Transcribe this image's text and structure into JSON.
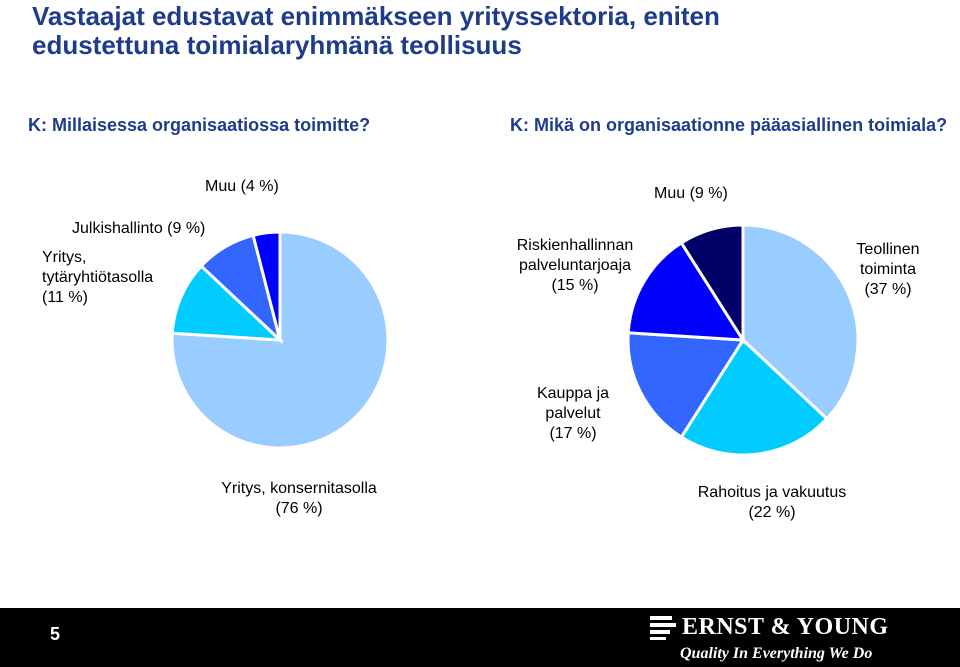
{
  "slide": {
    "title_line1": "Vastaajat edustavat enimmäkseen yrityssektoria, eniten",
    "title_line2": "edustettuna toimialaryhmänä teollisuus",
    "page_number": "5"
  },
  "brand": {
    "name": "ERNST & YOUNG",
    "tagline": "Quality In Everything We Do"
  },
  "chart_data": [
    {
      "type": "pie",
      "question": "K: Millaisessa organisaatiossa toimitte?",
      "slices": [
        {
          "label_lines": [
            "Yritys, konsernitasolla",
            "(76 %)"
          ],
          "category": "Yritys, konsernitasolla",
          "value": 76,
          "color": "#99ccff"
        },
        {
          "label_lines": [
            "Yritys,",
            "tytäryhtiötasolla",
            "(11 %)"
          ],
          "category": "Yritys, tytäryhtiötasolla",
          "value": 11,
          "color": "#00ccff"
        },
        {
          "label_lines": [
            "Julkishallinto (9 %)"
          ],
          "category": "Julkishallinto",
          "value": 9,
          "color": "#3366ff"
        },
        {
          "label_lines": [
            "Muu (4 %)"
          ],
          "category": "Muu",
          "value": 4,
          "color": "#0000ff"
        }
      ]
    },
    {
      "type": "pie",
      "question": "K: Mikä on organisaationne pääasiallinen toimiala?",
      "slices": [
        {
          "label_lines": [
            "Teollinen",
            "toiminta",
            "(37 %)"
          ],
          "category": "Teollinen toiminta",
          "value": 37,
          "color": "#99ccff"
        },
        {
          "label_lines": [
            "Rahoitus ja vakuutus",
            "(22 %)"
          ],
          "category": "Rahoitus ja vakuutus",
          "value": 22,
          "color": "#00ccff"
        },
        {
          "label_lines": [
            "Kauppa ja",
            "palvelut",
            "(17 %)"
          ],
          "category": "Kauppa ja palvelut",
          "value": 17,
          "color": "#3366ff"
        },
        {
          "label_lines": [
            "Riskienhallinnan",
            "palveluntarjoaja",
            "(15 %)"
          ],
          "category": "Riskienhallinnan palveluntarjoaja",
          "value": 15,
          "color": "#0000ff"
        },
        {
          "label_lines": [
            "Muu (9 %)"
          ],
          "category": "Muu",
          "value": 9,
          "color": "#000066"
        }
      ]
    }
  ]
}
